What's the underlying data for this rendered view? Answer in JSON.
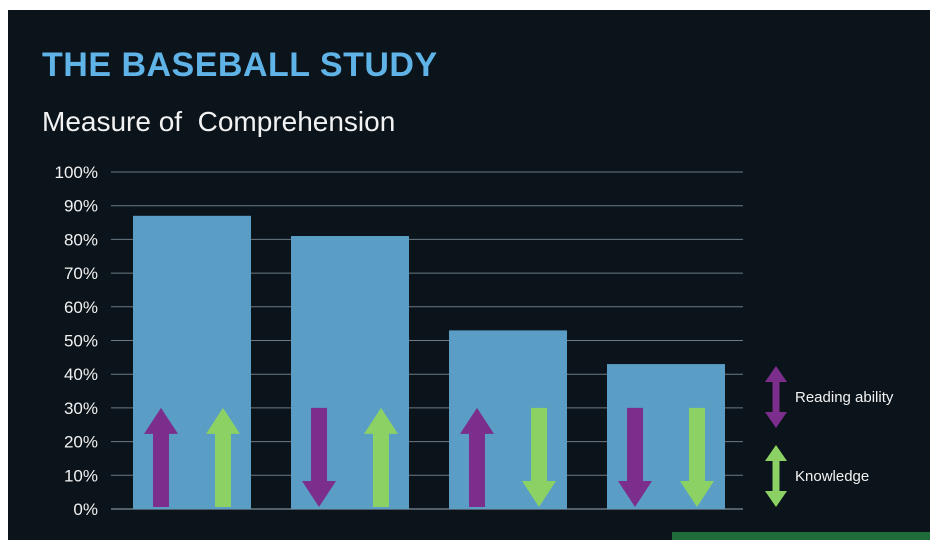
{
  "title": "THE BASEBALL STUDY",
  "subtitle": "Measure of  Comprehension",
  "colors": {
    "background": "#0b141b",
    "title": "#5fb3e6",
    "bar": "#5a9ec6",
    "grid": "#6a7a86",
    "reading_ability": "#7b2e8c",
    "knowledge": "#8cd164"
  },
  "chart_data": {
    "type": "bar",
    "title": "THE BASEBALL STUDY",
    "subtitle": "Measure of  Comprehension",
    "categories": [
      "",
      "",
      "",
      ""
    ],
    "values": [
      87,
      81,
      53,
      43
    ],
    "ylim": [
      0,
      100
    ],
    "y_unit": "%",
    "yticks": [
      "100%",
      "90%",
      "80%",
      "70%",
      "60%",
      "50%",
      "40%",
      "30%",
      "20%",
      "10%",
      "0%"
    ],
    "grid": true,
    "legend_position": "right",
    "legend": [
      {
        "label": "Reading ability",
        "icon": "double-arrow-vertical",
        "color": "#7b2e8c"
      },
      {
        "label": "Knowledge",
        "icon": "double-arrow-vertical",
        "color": "#8cd164"
      }
    ],
    "arrows": [
      {
        "reading_ability": "up",
        "knowledge": "up"
      },
      {
        "reading_ability": "down",
        "knowledge": "up"
      },
      {
        "reading_ability": "up",
        "knowledge": "down"
      },
      {
        "reading_ability": "down",
        "knowledge": "down"
      }
    ]
  }
}
